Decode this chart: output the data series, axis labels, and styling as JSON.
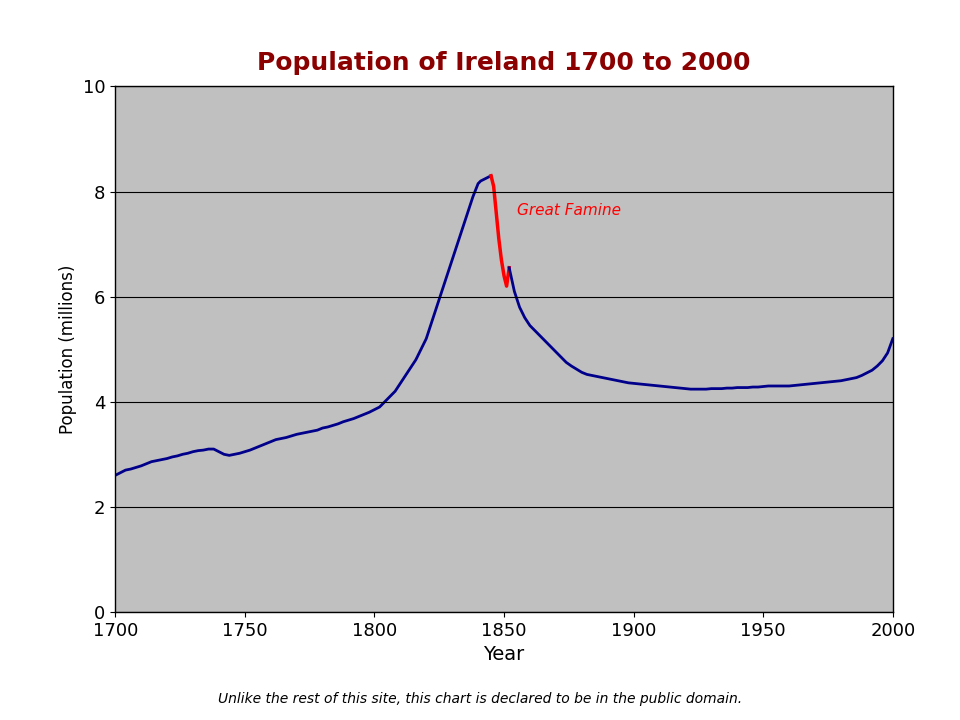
{
  "title": "Population of Ireland 1700 to 2000",
  "xlabel": "Year",
  "ylabel": "Population (millions)",
  "xlim": [
    1700,
    2000
  ],
  "ylim": [
    0,
    10
  ],
  "yticks": [
    0,
    2,
    4,
    6,
    8,
    10
  ],
  "xticks": [
    1700,
    1750,
    1800,
    1850,
    1900,
    1950,
    2000
  ],
  "background_color": "#c0c0c0",
  "figure_color": "#ffffff",
  "line_color_normal": "#00008B",
  "line_color_famine": "#ff0000",
  "famine_label": "Great Famine",
  "famine_label_color": "#ff0000",
  "footnote": "Unlike the rest of this site, this chart is declared to be in the public domain.",
  "title_color": "#8B0000",
  "title_fontsize": 18,
  "years_blue_pre": [
    1700,
    1702,
    1704,
    1706,
    1708,
    1710,
    1712,
    1714,
    1716,
    1718,
    1720,
    1722,
    1724,
    1726,
    1728,
    1730,
    1732,
    1734,
    1736,
    1738,
    1740,
    1742,
    1744,
    1746,
    1748,
    1750,
    1752,
    1754,
    1756,
    1758,
    1760,
    1762,
    1764,
    1766,
    1768,
    1770,
    1772,
    1774,
    1776,
    1778,
    1780,
    1782,
    1784,
    1786,
    1788,
    1790,
    1792,
    1794,
    1796,
    1798,
    1800,
    1802,
    1804,
    1806,
    1808,
    1810,
    1812,
    1814,
    1816,
    1818,
    1820,
    1822,
    1824,
    1826,
    1828,
    1830,
    1832,
    1834,
    1836,
    1838,
    1840,
    1841,
    1843,
    1845
  ],
  "pop_blue_pre": [
    2.6,
    2.65,
    2.7,
    2.72,
    2.75,
    2.78,
    2.82,
    2.86,
    2.88,
    2.9,
    2.92,
    2.95,
    2.97,
    3.0,
    3.02,
    3.05,
    3.07,
    3.08,
    3.1,
    3.1,
    3.05,
    3.0,
    2.98,
    3.0,
    3.02,
    3.05,
    3.08,
    3.12,
    3.16,
    3.2,
    3.24,
    3.28,
    3.3,
    3.32,
    3.35,
    3.38,
    3.4,
    3.42,
    3.44,
    3.46,
    3.5,
    3.52,
    3.55,
    3.58,
    3.62,
    3.65,
    3.68,
    3.72,
    3.76,
    3.8,
    3.85,
    3.9,
    4.0,
    4.1,
    4.2,
    4.35,
    4.5,
    4.65,
    4.8,
    5.0,
    5.2,
    5.5,
    5.8,
    6.1,
    6.4,
    6.7,
    7.0,
    7.3,
    7.6,
    7.9,
    8.15,
    8.2,
    8.25,
    8.3
  ],
  "years_red": [
    1845,
    1846,
    1847,
    1848,
    1849,
    1850,
    1851,
    1852
  ],
  "pop_red": [
    8.3,
    8.1,
    7.6,
    7.1,
    6.7,
    6.4,
    6.2,
    6.55
  ],
  "years_blue_post": [
    1852,
    1854,
    1856,
    1858,
    1860,
    1862,
    1864,
    1866,
    1868,
    1870,
    1872,
    1874,
    1876,
    1878,
    1880,
    1882,
    1884,
    1886,
    1888,
    1890,
    1892,
    1894,
    1896,
    1898,
    1900,
    1902,
    1904,
    1906,
    1908,
    1910,
    1912,
    1914,
    1916,
    1918,
    1920,
    1922,
    1924,
    1926,
    1928,
    1930,
    1932,
    1934,
    1936,
    1938,
    1940,
    1942,
    1944,
    1946,
    1948,
    1950,
    1952,
    1954,
    1956,
    1958,
    1960,
    1962,
    1964,
    1966,
    1968,
    1970,
    1972,
    1974,
    1976,
    1978,
    1980,
    1982,
    1984,
    1986,
    1988,
    1990,
    1992,
    1994,
    1996,
    1998,
    2000
  ],
  "pop_blue_post": [
    6.55,
    6.1,
    5.8,
    5.6,
    5.45,
    5.35,
    5.25,
    5.15,
    5.05,
    4.95,
    4.85,
    4.75,
    4.68,
    4.62,
    4.56,
    4.52,
    4.5,
    4.48,
    4.46,
    4.44,
    4.42,
    4.4,
    4.38,
    4.36,
    4.35,
    4.34,
    4.33,
    4.32,
    4.31,
    4.3,
    4.29,
    4.28,
    4.27,
    4.26,
    4.25,
    4.24,
    4.24,
    4.24,
    4.24,
    4.25,
    4.25,
    4.25,
    4.26,
    4.26,
    4.27,
    4.27,
    4.27,
    4.28,
    4.28,
    4.29,
    4.3,
    4.3,
    4.3,
    4.3,
    4.3,
    4.31,
    4.32,
    4.33,
    4.34,
    4.35,
    4.36,
    4.37,
    4.38,
    4.39,
    4.4,
    4.42,
    4.44,
    4.46,
    4.5,
    4.55,
    4.6,
    4.68,
    4.78,
    4.93,
    5.2
  ]
}
